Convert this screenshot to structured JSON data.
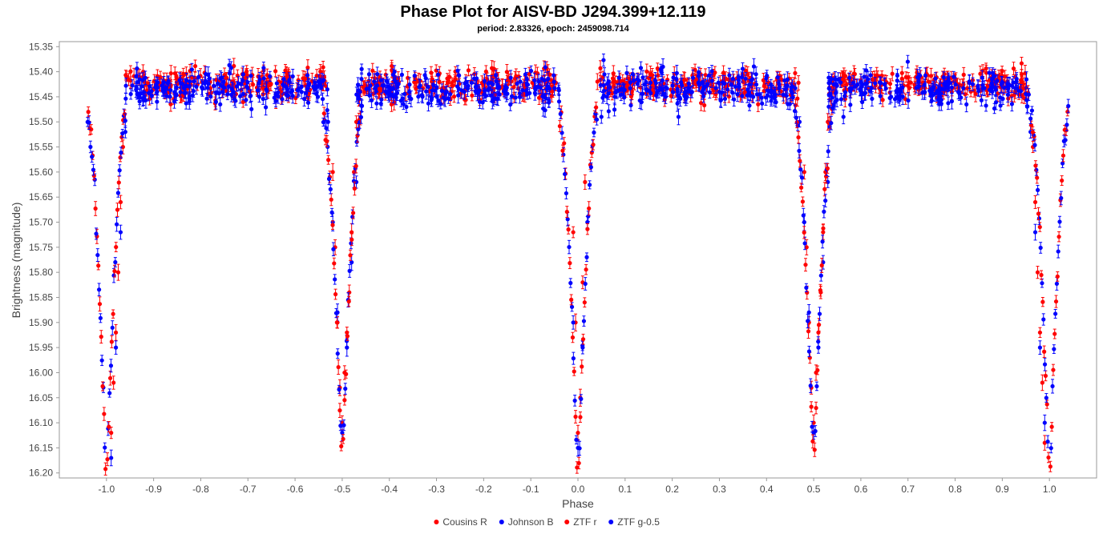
{
  "chart_data": {
    "type": "scatter",
    "title": "Phase Plot for AISV-BD J294.399+12.119",
    "subtitle": "period: 2.83326, epoch: 2459098.714",
    "xlabel": "Phase",
    "ylabel": "Brightness (magnitude)",
    "xlim": [
      -1.1,
      1.1
    ],
    "ylim": [
      15.34,
      16.21
    ],
    "y_inverted": true,
    "grid": false,
    "legend_position": "bottom",
    "x_ticks": [
      -1.0,
      -0.9,
      -0.8,
      -0.7,
      -0.6,
      -0.5,
      -0.4,
      -0.3,
      -0.2,
      -0.1,
      0.0,
      0.1,
      0.2,
      0.3,
      0.4,
      0.5,
      0.6,
      0.7,
      0.8,
      0.9,
      1.0
    ],
    "x_tick_labels": [
      "-1.0",
      "-0.9",
      "-0.8",
      "-0.7",
      "-0.6",
      "-0.5",
      "-0.4",
      "-0.3",
      "-0.2",
      "-0.1",
      "0.0",
      "0.1",
      "0.2",
      "0.3",
      "0.4",
      "0.5",
      "0.6",
      "0.7",
      "0.8",
      "0.9",
      "1.0"
    ],
    "y_ticks": [
      15.35,
      15.4,
      15.45,
      15.5,
      15.55,
      15.6,
      15.65,
      15.7,
      15.75,
      15.8,
      15.85,
      15.9,
      15.95,
      16.0,
      16.05,
      16.1,
      16.15,
      16.2
    ],
    "y_tick_labels": [
      "15.35",
      "15.40",
      "15.45",
      "15.50",
      "15.55",
      "15.60",
      "15.65",
      "15.70",
      "15.75",
      "15.80",
      "15.85",
      "15.90",
      "15.95",
      "16.00",
      "16.05",
      "16.10",
      "16.15",
      "16.20"
    ],
    "series": [
      {
        "name": "Cousins R",
        "color": "#ff0000",
        "x": [
          -0.99,
          -0.985,
          -0.98,
          -0.975,
          -0.97,
          -0.965,
          -0.52,
          -0.515,
          -0.51,
          -0.505,
          -0.5,
          -0.495,
          -0.49,
          -0.485,
          -0.48,
          -0.475,
          -0.47,
          -0.01,
          -0.005,
          0.0,
          0.005,
          0.01,
          0.015,
          0.48,
          0.485,
          0.49,
          0.495,
          0.5,
          0.505,
          0.51,
          0.515,
          0.52,
          0.525,
          0.53,
          0.965,
          0.97,
          0.975,
          0.98,
          0.985,
          0.99
        ],
        "y": [
          16.12,
          16.02,
          15.92,
          15.8,
          15.66,
          15.55,
          15.6,
          15.75,
          15.9,
          16.03,
          16.1,
          16.0,
          15.92,
          15.84,
          15.72,
          15.6,
          15.5,
          15.72,
          15.9,
          16.12,
          16.05,
          15.82,
          15.62,
          15.6,
          15.75,
          15.9,
          16.03,
          16.1,
          16.0,
          15.92,
          15.84,
          15.72,
          15.6,
          15.5,
          15.55,
          15.66,
          15.8,
          15.92,
          16.02,
          16.14
        ]
      },
      {
        "name": "Johnson B",
        "color": "#0000ff",
        "x": [
          -0.99,
          -0.98,
          -0.97,
          -0.96,
          -0.53,
          -0.52,
          -0.51,
          -0.5,
          -0.49,
          -0.48,
          -0.47,
          -0.01,
          0.0,
          0.01,
          0.02,
          0.47,
          0.48,
          0.49,
          0.5,
          0.51,
          0.52,
          0.53,
          0.96,
          0.97,
          0.98,
          0.99
        ],
        "y": [
          16.17,
          15.95,
          15.72,
          15.52,
          15.5,
          15.7,
          15.88,
          16.12,
          15.95,
          15.78,
          15.62,
          15.9,
          16.15,
          15.95,
          15.7,
          15.5,
          15.7,
          15.88,
          16.12,
          15.95,
          15.78,
          15.62,
          15.52,
          15.72,
          15.95,
          16.1
        ]
      },
      {
        "name": "ZTF r",
        "color": "#ff0000",
        "segments": [
          {
            "x_range": [
              -0.96,
              -0.53
            ],
            "mean": 15.425,
            "scatter": 0.03
          },
          {
            "x_range": [
              -0.47,
              -0.04
            ],
            "mean": 15.425,
            "scatter": 0.03
          },
          {
            "x_range": [
              0.04,
              0.47
            ],
            "mean": 15.425,
            "scatter": 0.03
          },
          {
            "x_range": [
              0.53,
              0.96
            ],
            "mean": 15.425,
            "scatter": 0.03
          }
        ]
      },
      {
        "name": "ZTF g-0.5",
        "color": "#0000ff",
        "segments": [
          {
            "x_range": [
              -0.96,
              -0.53
            ],
            "mean": 15.435,
            "scatter": 0.035
          },
          {
            "x_range": [
              -0.47,
              -0.04
            ],
            "mean": 15.435,
            "scatter": 0.035
          },
          {
            "x_range": [
              0.04,
              0.47
            ],
            "mean": 15.435,
            "scatter": 0.035
          },
          {
            "x_range": [
              0.53,
              0.96
            ],
            "mean": 15.435,
            "scatter": 0.035
          }
        ]
      }
    ],
    "eclipse_minima": [
      {
        "phase": -1.0,
        "mag": 16.18
      },
      {
        "phase": -0.5,
        "mag": 16.15
      },
      {
        "phase": 0.0,
        "mag": 16.18
      },
      {
        "phase": 0.5,
        "mag": 16.15
      },
      {
        "phase": 1.0,
        "mag": 16.18
      }
    ],
    "legend": [
      {
        "label": "Cousins R",
        "color": "#ff0000"
      },
      {
        "label": "Johnson B",
        "color": "#0000ff"
      },
      {
        "label": "ZTF r",
        "color": "#ff0000"
      },
      {
        "label": "ZTF g-0.5",
        "color": "#0000ff"
      }
    ]
  }
}
